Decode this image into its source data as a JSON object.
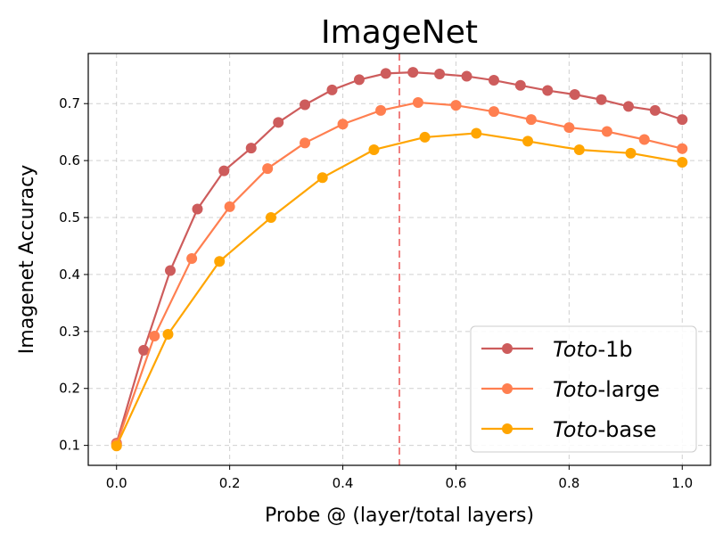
{
  "chart_data": {
    "type": "line",
    "title": "ImageNet",
    "xlabel": "Probe @ (layer/total layers)",
    "ylabel": "Imagenet Accuracy",
    "xlim": [
      -0.05,
      1.05
    ],
    "ylim": [
      0.065,
      0.788
    ],
    "xticks": [
      0.0,
      0.2,
      0.4,
      0.6,
      0.8,
      1.0
    ],
    "xtick_labels": [
      "0.0",
      "0.2",
      "0.4",
      "0.6",
      "0.8",
      "1.0"
    ],
    "yticks": [
      0.1,
      0.2,
      0.3,
      0.4,
      0.5,
      0.6,
      0.7
    ],
    "ytick_labels": [
      "0.1",
      "0.2",
      "0.3",
      "0.4",
      "0.5",
      "0.6",
      "0.7"
    ],
    "grid": true,
    "vline": {
      "x": 0.5,
      "color": "#f08080",
      "style": "dashed"
    },
    "legend_position": "lower-right",
    "series": [
      {
        "name_italic": "Toto",
        "name_suffix": "-1b",
        "color": "#cd5c5c",
        "x": [
          0.0,
          0.048,
          0.095,
          0.143,
          0.19,
          0.238,
          0.286,
          0.333,
          0.381,
          0.429,
          0.476,
          0.524,
          0.571,
          0.619,
          0.667,
          0.714,
          0.762,
          0.81,
          0.857,
          0.905,
          0.952,
          1.0
        ],
        "y": [
          0.104,
          0.267,
          0.407,
          0.515,
          0.582,
          0.622,
          0.667,
          0.698,
          0.724,
          0.742,
          0.753,
          0.755,
          0.752,
          0.748,
          0.741,
          0.732,
          0.723,
          0.716,
          0.707,
          0.695,
          0.688,
          0.672
        ]
      },
      {
        "name_italic": "Toto",
        "name_suffix": "-large",
        "color": "#ff7f50",
        "x": [
          0.0,
          0.067,
          0.133,
          0.2,
          0.267,
          0.333,
          0.4,
          0.467,
          0.533,
          0.6,
          0.667,
          0.733,
          0.8,
          0.867,
          0.933,
          1.0
        ],
        "y": [
          0.102,
          0.292,
          0.428,
          0.519,
          0.586,
          0.631,
          0.664,
          0.688,
          0.702,
          0.697,
          0.686,
          0.672,
          0.658,
          0.651,
          0.637,
          0.621
        ]
      },
      {
        "name_italic": "Toto",
        "name_suffix": "-base",
        "color": "#ffa500",
        "x": [
          0.0,
          0.091,
          0.182,
          0.273,
          0.364,
          0.455,
          0.545,
          0.636,
          0.727,
          0.818,
          0.909,
          1.0
        ],
        "y": [
          0.099,
          0.295,
          0.423,
          0.5,
          0.57,
          0.619,
          0.641,
          0.648,
          0.634,
          0.619,
          0.613,
          0.597
        ]
      }
    ]
  }
}
